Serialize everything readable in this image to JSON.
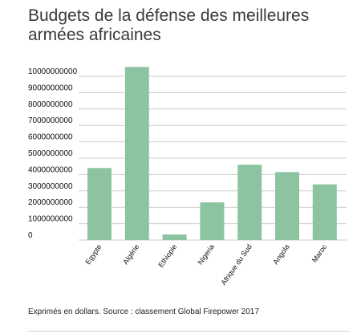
{
  "chart_data": {
    "type": "bar",
    "title": "Budgets de la défense des meilleures armées africaines",
    "categories": [
      "Egypte",
      "Algérie",
      "Ethiopie",
      "Nigeria",
      "Afrique du Sud",
      "Angola",
      "Maroc"
    ],
    "values": [
      4400000000,
      10570000000,
      340000000,
      2300000000,
      4600000000,
      4150000000,
      3400000000
    ],
    "yticks": [
      0,
      1000000000,
      2000000000,
      3000000000,
      4000000000,
      5000000000,
      6000000000,
      7000000000,
      8000000000,
      9000000000,
      10000000000
    ],
    "ytick_labels": [
      "0",
      "1000000000",
      "2000000000",
      "3000000000",
      "4000000000",
      "5000000000",
      "6000000000",
      "7000000000",
      "8000000000",
      "9000000000",
      "10000000000"
    ],
    "ylim": [
      0,
      10800000000
    ],
    "grid": true,
    "bar_color": "#8cc4a1",
    "grid_color": "#cccccc"
  },
  "footer": {
    "source": "Exprimés en dollars. Source : classement Global Firepower 2017"
  }
}
